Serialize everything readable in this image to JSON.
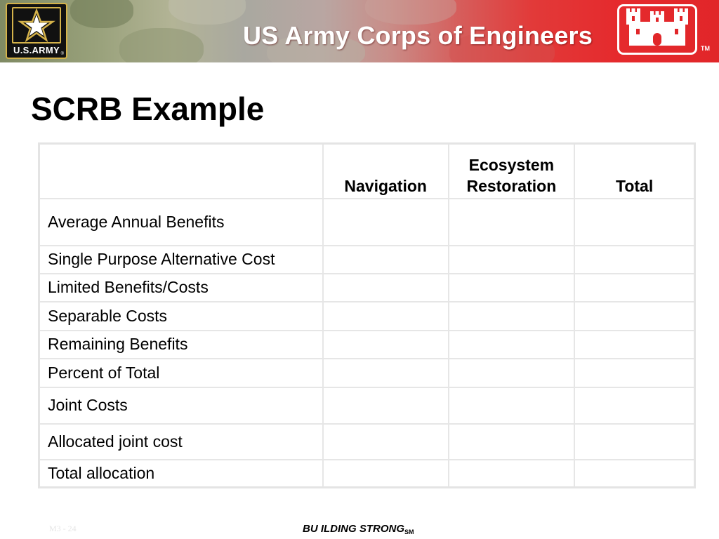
{
  "header": {
    "army_logo_text": "U.S.ARMY",
    "army_logo_reg": "®",
    "title": "US Army Corps of Engineers",
    "trademark": "TM"
  },
  "slide": {
    "title": "SCRB Example"
  },
  "table": {
    "headers": [
      "",
      "Navigation",
      "Ecosystem\nRestoration",
      "Total"
    ],
    "header_lines": {
      "navigation": "Navigation",
      "ecosystem_line1": "Ecosystem",
      "ecosystem_line2": "Restoration",
      "total": "Total"
    },
    "rows": [
      {
        "label": "Average Annual Benefits",
        "navigation": "",
        "ecosystem_restoration": "",
        "total": ""
      },
      {
        "label": "Single Purpose Alternative Cost",
        "navigation": "",
        "ecosystem_restoration": "",
        "total": ""
      },
      {
        "label": "Limited Benefits/Costs",
        "navigation": "",
        "ecosystem_restoration": "",
        "total": ""
      },
      {
        "label": "Separable Costs",
        "navigation": "",
        "ecosystem_restoration": "",
        "total": ""
      },
      {
        "label": "Remaining Benefits",
        "navigation": "",
        "ecosystem_restoration": "",
        "total": ""
      },
      {
        "label": "Percent of Total",
        "navigation": "",
        "ecosystem_restoration": "",
        "total": ""
      },
      {
        "label": "Joint Costs",
        "navigation": "",
        "ecosystem_restoration": "",
        "total": ""
      },
      {
        "label": "Allocated joint cost",
        "navigation": "",
        "ecosystem_restoration": "",
        "total": ""
      },
      {
        "label": "Total allocation",
        "navigation": "",
        "ecosystem_restoration": "",
        "total": ""
      }
    ]
  },
  "footer": {
    "slide_number": "M3 - 24",
    "tagline": "BU ILDING STRONG",
    "tagline_mark": "SM"
  },
  "colors": {
    "banner_red": "#e52a2d",
    "banner_green": "#7f8a63",
    "logo_gold": "#d4b24a",
    "grid_line": "#e6e6e6"
  },
  "icons": [
    "army-star-icon",
    "castle-icon"
  ]
}
